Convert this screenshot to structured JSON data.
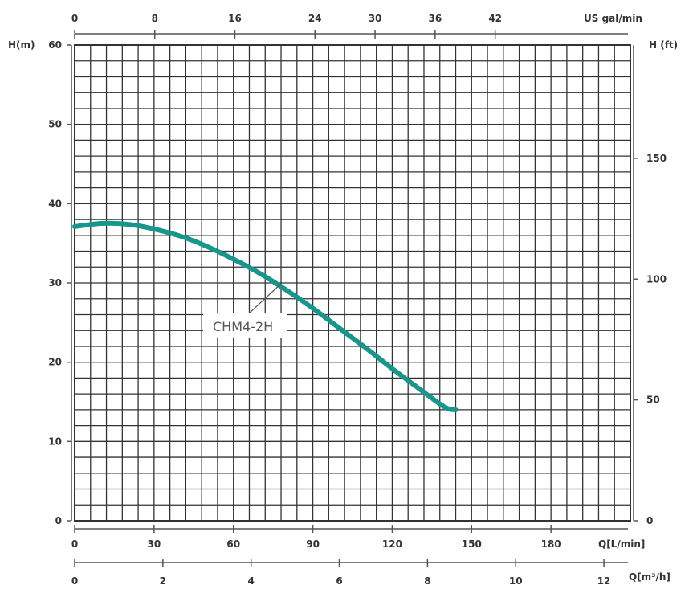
{
  "chart_data": {
    "type": "line",
    "title": "",
    "series": [
      {
        "name": "CHM4-2H",
        "x": [
          0,
          10,
          20,
          30,
          40,
          50,
          60,
          70,
          80,
          90,
          100,
          110,
          120,
          130,
          140,
          144
        ],
        "y": [
          37.1,
          37.5,
          37.4,
          36.8,
          35.9,
          34.6,
          33.0,
          31.2,
          29.1,
          26.8,
          24.3,
          21.8,
          19.2,
          16.7,
          14.3,
          14.0
        ],
        "color": "#17968c"
      }
    ],
    "axes": {
      "bottom": {
        "unit": "Q[L/min]",
        "range": [
          0,
          210
        ],
        "ticks": [
          {
            "value": 0,
            "label": "0"
          },
          {
            "value": 30,
            "label": "30"
          },
          {
            "value": 60,
            "label": "60"
          },
          {
            "value": 90,
            "label": "90"
          },
          {
            "value": 120,
            "label": "120"
          },
          {
            "value": 150,
            "label": "150"
          },
          {
            "value": 180,
            "label": "180"
          }
        ]
      },
      "bottom2": {
        "unit": "Q[m³/h]",
        "range": [
          0,
          12.6
        ],
        "ticks": [
          {
            "value": 0,
            "label": "0"
          },
          {
            "value": 2,
            "label": "2"
          },
          {
            "value": 4,
            "label": "4"
          },
          {
            "value": 6,
            "label": "6"
          },
          {
            "value": 8,
            "label": "8"
          },
          {
            "value": 10,
            "label": "10"
          },
          {
            "value": 12,
            "label": "12"
          }
        ]
      },
      "top": {
        "unit": "US gal/min",
        "range": [
          0,
          55.5
        ],
        "ticks": [
          {
            "value": 0,
            "label": "0"
          },
          {
            "value": 8,
            "label": "8"
          },
          {
            "value": 16,
            "label": "16"
          },
          {
            "value": 24,
            "label": "24"
          },
          {
            "value": 30,
            "label": "30"
          },
          {
            "value": 36,
            "label": "36"
          },
          {
            "value": 42,
            "label": "42"
          }
        ]
      },
      "left": {
        "unit": "H(m)",
        "range": [
          0,
          60
        ],
        "ticks": [
          {
            "value": 0,
            "label": "0"
          },
          {
            "value": 10,
            "label": "10"
          },
          {
            "value": 20,
            "label": "20"
          },
          {
            "value": 30,
            "label": "30"
          },
          {
            "value": 40,
            "label": "40"
          },
          {
            "value": 50,
            "label": "50"
          },
          {
            "value": 60,
            "label": "60"
          }
        ]
      },
      "right": {
        "unit": "H (ft)",
        "range": [
          0,
          196.85
        ],
        "ticks": [
          {
            "value": 0,
            "label": "0"
          },
          {
            "value": 50,
            "label": "50"
          },
          {
            "value": 100,
            "label": "100"
          },
          {
            "value": 150,
            "label": "150"
          }
        ]
      }
    },
    "grid": {
      "on": true,
      "columns": 35,
      "rows": 30
    },
    "annotations": [
      {
        "text": "CHM4-2H",
        "series": "CHM4-2H"
      }
    ]
  },
  "colors": {
    "grid": "#333333",
    "axis": "#555555",
    "text": "#333333",
    "curve": "#17968c"
  }
}
